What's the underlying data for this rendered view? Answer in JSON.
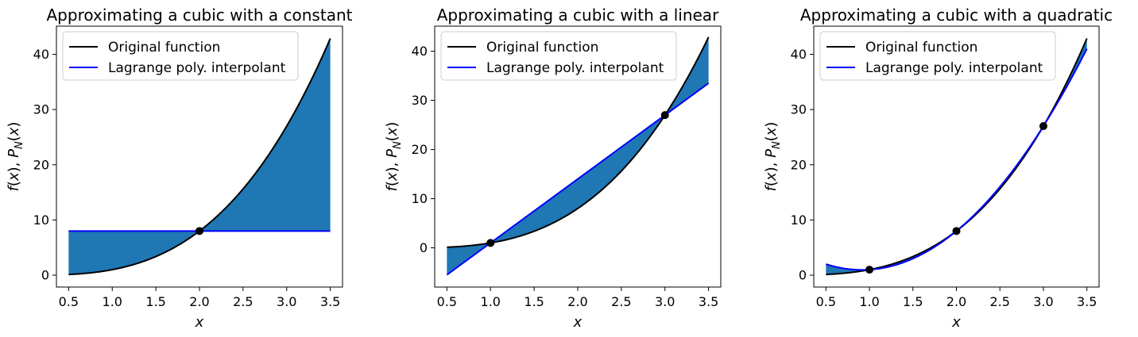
{
  "chart_data": [
    {
      "type": "line",
      "title": "Approximating a cubic with a constant",
      "xlabel": "x",
      "ylabel": "f(x), P_N(x)",
      "xlim": [
        0.36,
        3.64
      ],
      "ylim": [
        -2.15,
        45.1
      ],
      "xticks": [
        0.5,
        1.0,
        1.5,
        2.0,
        2.5,
        3.0,
        3.5
      ],
      "xtick_labels": [
        "0.5",
        "1.0",
        "1.5",
        "2.0",
        "2.5",
        "3.0",
        "3.5"
      ],
      "yticks": [
        0,
        10,
        20,
        30,
        40
      ],
      "ytick_labels": [
        "0",
        "10",
        "20",
        "30",
        "40"
      ],
      "legend_position": "top-left",
      "series": [
        {
          "name": "Original function",
          "color": "#000000",
          "function": "x^3",
          "x_range": [
            0.5,
            3.5
          ]
        },
        {
          "name": "Lagrange poly. interpolant",
          "color": "#0000ff",
          "function": "8",
          "x_range": [
            0.5,
            3.5
          ]
        }
      ],
      "fill_between": {
        "color": "#1f77b4"
      },
      "nodes": [
        {
          "x": 2,
          "y": 8
        }
      ]
    },
    {
      "type": "line",
      "title": "Approximating a cubic with a linear",
      "xlabel": "x",
      "ylabel": "f(x), P_N(x)",
      "xlim": [
        0.36,
        3.64
      ],
      "ylim": [
        -7.98,
        45.1
      ],
      "xticks": [
        0.5,
        1.0,
        1.5,
        2.0,
        2.5,
        3.0,
        3.5
      ],
      "xtick_labels": [
        "0.5",
        "1.0",
        "1.5",
        "2.0",
        "2.5",
        "3.0",
        "3.5"
      ],
      "yticks": [
        0,
        10,
        20,
        30,
        40
      ],
      "ytick_labels": [
        "0",
        "10",
        "20",
        "30",
        "40"
      ],
      "legend_position": "top-left",
      "series": [
        {
          "name": "Original function",
          "color": "#000000",
          "function": "x^3",
          "x_range": [
            0.5,
            3.5
          ]
        },
        {
          "name": "Lagrange poly. interpolant",
          "color": "#0000ff",
          "function": "13x - 12",
          "x_range": [
            0.5,
            3.5
          ]
        }
      ],
      "fill_between": {
        "color": "#1f77b4"
      },
      "nodes": [
        {
          "x": 1,
          "y": 1
        },
        {
          "x": 3,
          "y": 27
        }
      ]
    },
    {
      "type": "line",
      "title": "Approximating a cubic with a quadratic",
      "xlabel": "x",
      "ylabel": "f(x), P_N(x)",
      "xlim": [
        0.36,
        3.64
      ],
      "ylim": [
        -2.15,
        45.1
      ],
      "xticks": [
        0.5,
        1.0,
        1.5,
        2.0,
        2.5,
        3.0,
        3.5
      ],
      "xtick_labels": [
        "0.5",
        "1.0",
        "1.5",
        "2.0",
        "2.5",
        "3.0",
        "3.5"
      ],
      "yticks": [
        0,
        10,
        20,
        30,
        40
      ],
      "ytick_labels": [
        "0",
        "10",
        "20",
        "30",
        "40"
      ],
      "legend_position": "top-left",
      "series": [
        {
          "name": "Original function",
          "color": "#000000",
          "function": "x^3",
          "x_range": [
            0.5,
            3.5
          ]
        },
        {
          "name": "Lagrange poly. interpolant",
          "color": "#0000ff",
          "function": "6x^2 - 11x + 6",
          "x_range": [
            0.5,
            3.5
          ]
        }
      ],
      "fill_between": {
        "color": "#1f77b4"
      },
      "nodes": [
        {
          "x": 1,
          "y": 1
        },
        {
          "x": 2,
          "y": 8
        },
        {
          "x": 3,
          "y": 27
        }
      ]
    }
  ]
}
